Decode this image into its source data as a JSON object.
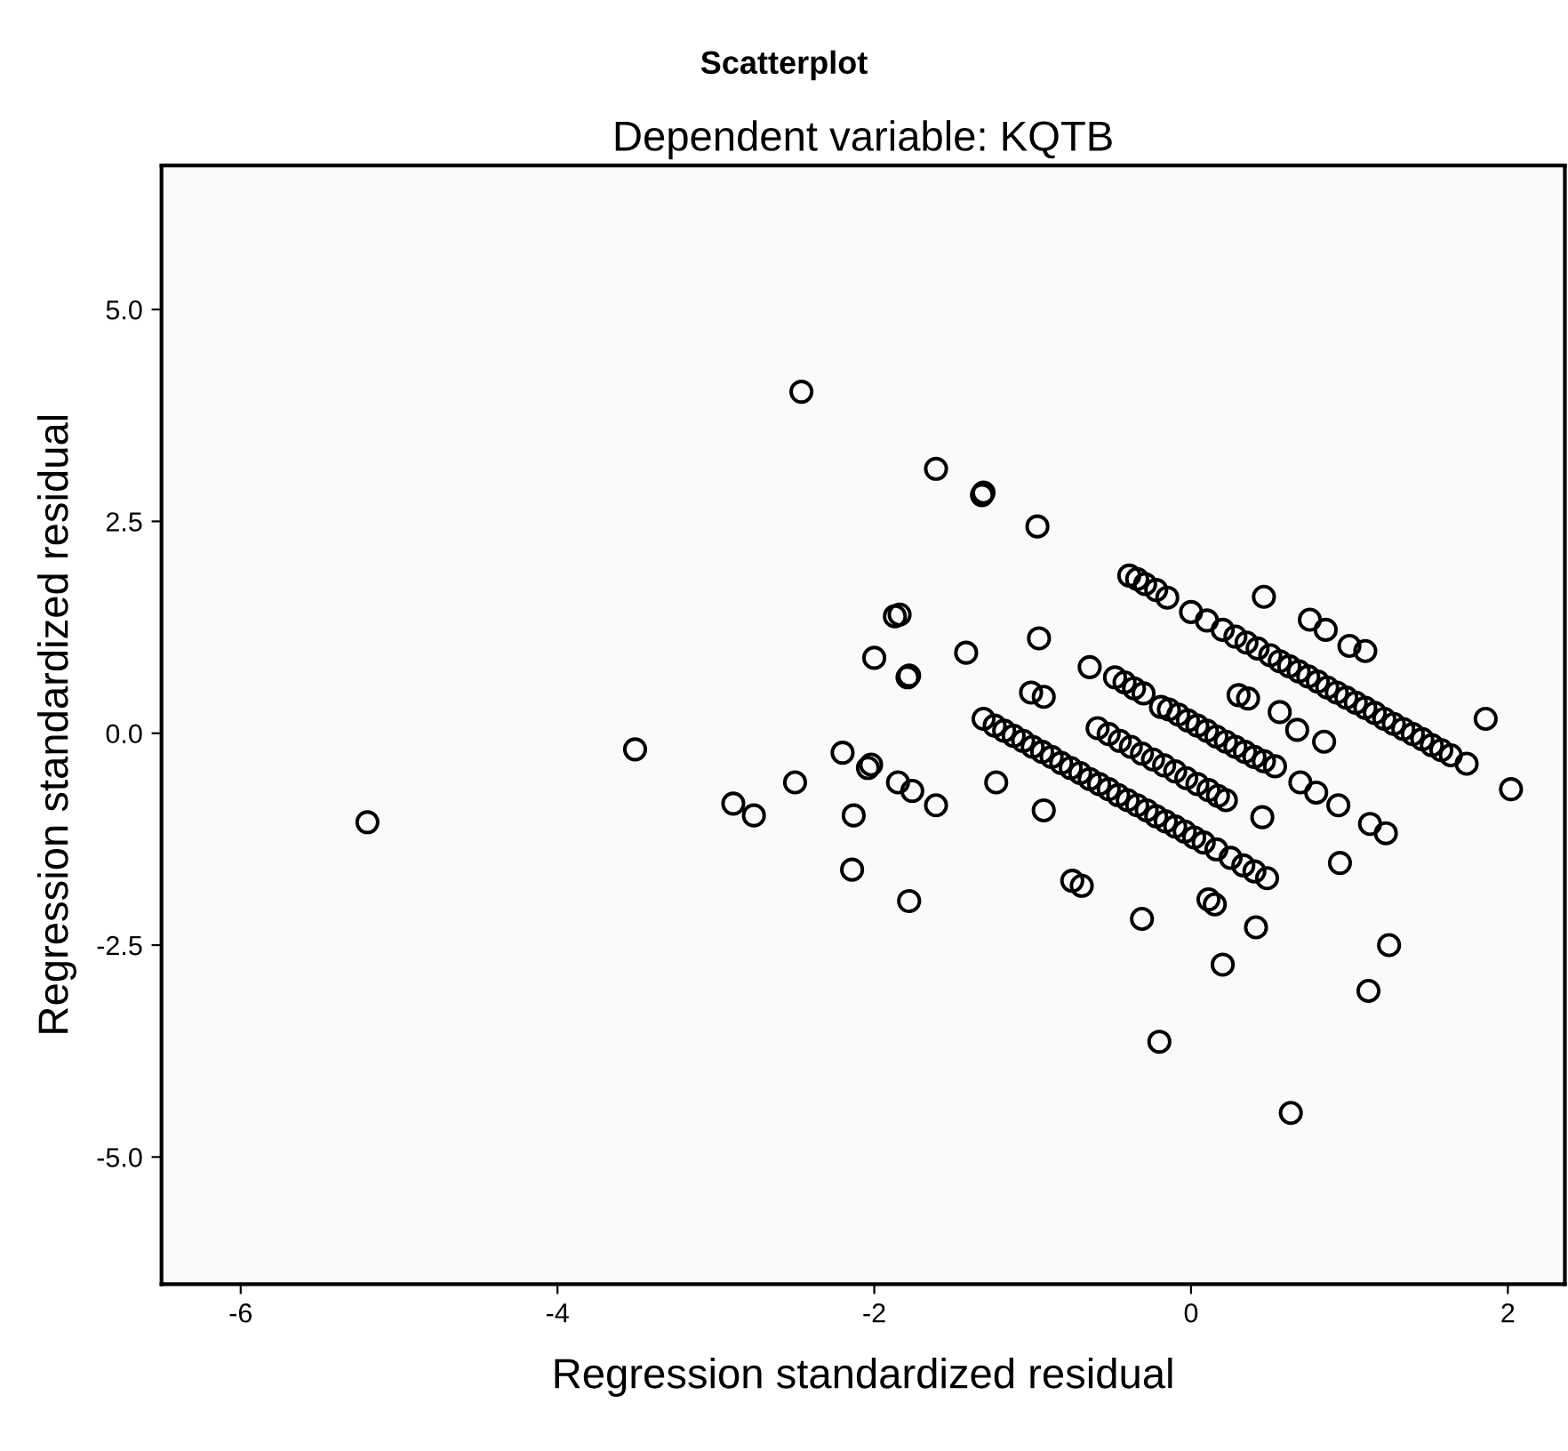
{
  "chart_data": {
    "type": "scatter",
    "title": "Scatterplot",
    "subtitle": "Dependent variable: KQTB",
    "xlabel": "Regression standardized residual",
    "ylabel": "Regression standardized residual",
    "xlim": [
      -6.5,
      2.36
    ],
    "ylim": [
      -6.5,
      6.7
    ],
    "xticks": [
      -6,
      -4,
      -2,
      0,
      2
    ],
    "yticks": [
      {
        "value": 5,
        "label": "5.0"
      },
      {
        "value": 2.5,
        "label": "2.5"
      },
      {
        "value": 0,
        "label": "0.0"
      },
      {
        "value": -2.5,
        "label": "-2.5"
      },
      {
        "value": -5,
        "label": "-5.0"
      }
    ],
    "grid": false,
    "marker": "circle",
    "series": [
      {
        "color": "#000000",
        "x": [
          -5.2,
          -3.51,
          -2.46,
          -2.89,
          -2.76,
          -2.5,
          -2.2,
          -2.13,
          -2.14,
          -2.04,
          -1.61,
          -1.32,
          -1.31,
          -0.97,
          -1.87,
          -1.84,
          -2.0,
          -1.79,
          -1.78,
          -1.42,
          -0.96,
          -1.01,
          -0.93,
          -0.64,
          -1.23,
          -2.02,
          -1.85,
          -1.76,
          -1.61,
          -1.78,
          -0.93,
          -0.75,
          -0.69,
          -0.31,
          0.11,
          0.15,
          0.41,
          0.2,
          -0.2,
          0.63,
          0.84,
          0.93,
          1.13,
          1.23,
          0.94,
          1.25,
          1.12,
          1.86,
          2.02,
          0.69,
          0.79,
          0.67,
          0.46,
          0.75,
          0.85,
          1.0,
          1.1,
          0.3,
          0.36,
          0.56,
          0.45,
          -0.39,
          -0.34,
          -0.29,
          -0.22,
          -0.15,
          0.0,
          0.1,
          0.2,
          0.28,
          0.35,
          0.42,
          0.5,
          0.56,
          0.62,
          0.68,
          0.74,
          0.8,
          0.86,
          0.92,
          0.98,
          1.04,
          1.1,
          1.16,
          1.22,
          1.28,
          1.34,
          1.4,
          1.46,
          1.52,
          1.58,
          1.64,
          1.74,
          -0.48,
          -0.42,
          -0.36,
          -0.3,
          -0.19,
          -0.14,
          -0.08,
          -0.02,
          0.04,
          0.1,
          0.16,
          0.22,
          0.28,
          0.34,
          0.4,
          0.46,
          0.53,
          -0.59,
          -0.52,
          -0.45,
          -0.38,
          -0.31,
          -0.24,
          -0.17,
          -0.1,
          -0.03,
          0.04,
          0.11,
          0.17,
          0.22,
          -1.31,
          -1.24,
          -1.18,
          -1.12,
          -1.06,
          -1.0,
          -0.94,
          -0.88,
          -0.82,
          -0.76,
          -0.7,
          -0.64,
          -0.58,
          -0.52,
          -0.46,
          -0.4,
          -0.34,
          -0.28,
          -0.22,
          -0.16,
          -0.1,
          -0.04,
          0.02,
          0.08,
          0.16,
          0.25,
          0.33,
          0.4,
          0.48
        ],
        "values": [
          -1.05,
          -0.19,
          4.03,
          -0.83,
          -0.97,
          -0.58,
          -0.23,
          -0.97,
          -1.61,
          -0.41,
          3.12,
          2.81,
          2.84,
          2.44,
          1.38,
          1.4,
          0.89,
          0.66,
          0.68,
          0.95,
          1.12,
          0.48,
          0.43,
          0.78,
          -0.58,
          -0.37,
          -0.58,
          -0.68,
          -0.85,
          -1.98,
          -0.91,
          -1.74,
          -1.8,
          -2.19,
          -1.96,
          -2.02,
          -2.29,
          -2.73,
          -3.64,
          -4.48,
          -0.1,
          -0.85,
          -1.07,
          -1.18,
          -1.53,
          -2.5,
          -3.04,
          0.17,
          -0.66,
          -0.58,
          -0.7,
          0.04,
          1.61,
          1.34,
          1.22,
          1.03,
          0.97,
          0.45,
          0.41,
          0.25,
          -0.99,
          1.86,
          1.82,
          1.76,
          1.69,
          1.6,
          1.43,
          1.33,
          1.22,
          1.14,
          1.07,
          1.0,
          0.92,
          0.85,
          0.79,
          0.73,
          0.67,
          0.61,
          0.54,
          0.48,
          0.42,
          0.36,
          0.3,
          0.24,
          0.17,
          0.11,
          0.05,
          -0.01,
          -0.07,
          -0.14,
          -0.2,
          -0.26,
          -0.36,
          0.66,
          0.6,
          0.53,
          0.47,
          0.31,
          0.28,
          0.22,
          0.15,
          0.09,
          0.03,
          -0.04,
          -0.1,
          -0.16,
          -0.22,
          -0.28,
          -0.33,
          -0.39,
          0.06,
          -0.01,
          -0.09,
          -0.16,
          -0.24,
          -0.31,
          -0.38,
          -0.45,
          -0.53,
          -0.6,
          -0.67,
          -0.74,
          -0.79,
          0.17,
          0.09,
          0.03,
          -0.03,
          -0.09,
          -0.16,
          -0.22,
          -0.28,
          -0.35,
          -0.41,
          -0.47,
          -0.54,
          -0.6,
          -0.66,
          -0.73,
          -0.79,
          -0.85,
          -0.91,
          -0.98,
          -1.04,
          -1.1,
          -1.16,
          -1.23,
          -1.29,
          -1.37,
          -1.47,
          -1.56,
          -1.63,
          -1.71
        ]
      }
    ]
  }
}
